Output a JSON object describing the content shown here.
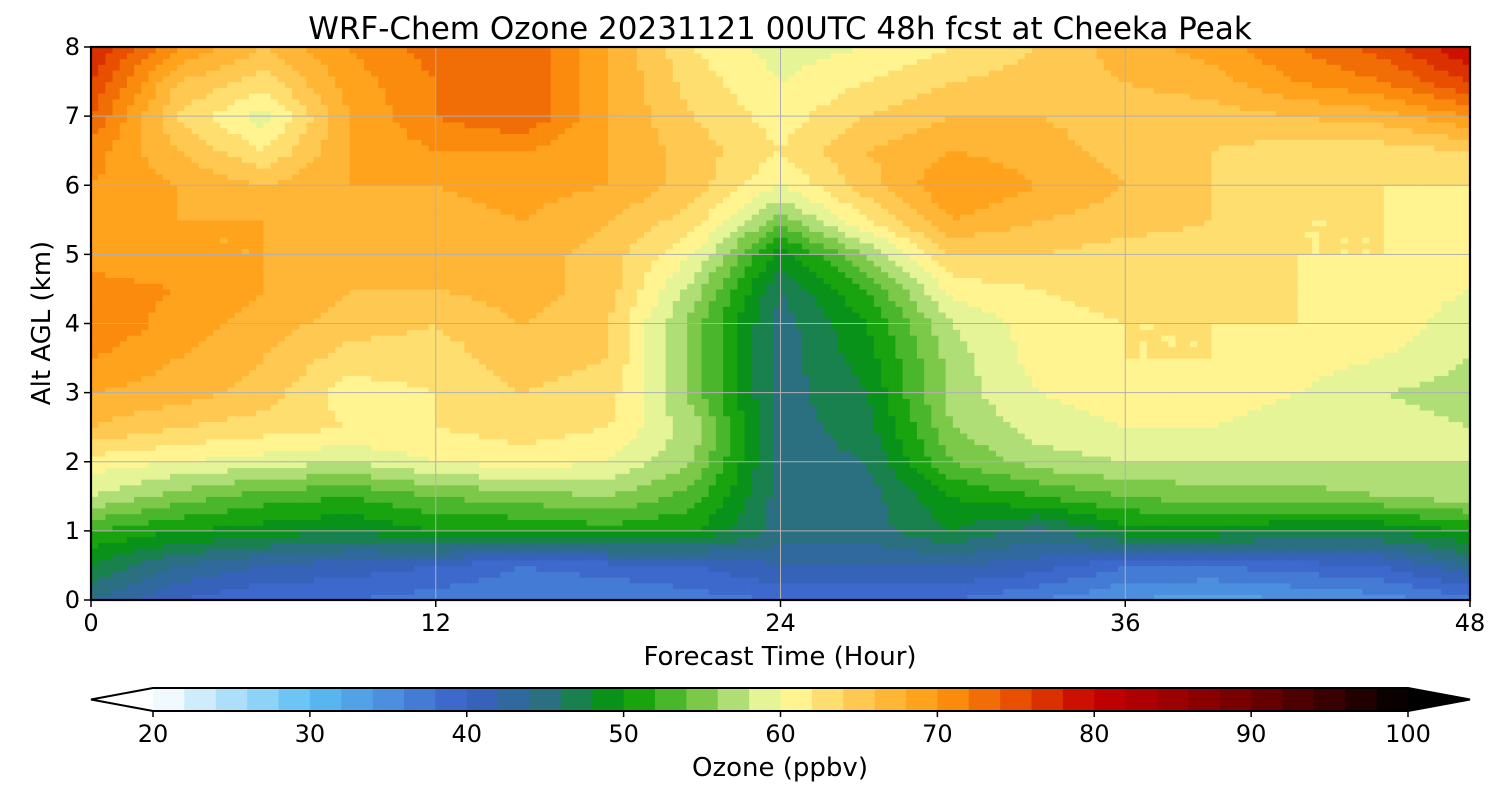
{
  "chart_data": {
    "type": "heatmap",
    "title": "WRF-Chem Ozone  20231121 00UTC 48h fcst at Cheeka Peak",
    "xlabel": "Forecast Time (Hour)",
    "ylabel": "Alt AGL (km)",
    "xlim": [
      0,
      48
    ],
    "ylim": [
      0,
      8
    ],
    "x_ticks": [
      0,
      12,
      24,
      36,
      48
    ],
    "y_ticks": [
      0,
      1,
      2,
      3,
      4,
      5,
      6,
      7,
      8
    ],
    "grid": true,
    "x": [
      0,
      3,
      6,
      9,
      12,
      15,
      18,
      21,
      24,
      27,
      30,
      33,
      36,
      39,
      42,
      45,
      48
    ],
    "y": [
      0,
      0.5,
      1,
      1.5,
      2,
      2.5,
      3,
      3.5,
      4,
      4.5,
      5,
      5.5,
      6,
      6.5,
      7,
      7.5,
      8
    ],
    "z": [
      [
        44,
        40,
        38,
        38,
        37,
        36,
        36,
        37,
        38,
        38,
        38,
        36,
        34,
        33,
        34,
        35,
        37
      ],
      [
        48,
        44,
        42,
        41,
        40,
        38,
        39,
        40,
        42,
        42,
        42,
        41,
        38,
        38,
        39,
        40,
        44
      ],
      [
        52,
        50,
        49,
        48,
        50,
        50,
        51,
        50,
        45,
        45,
        48,
        45,
        49,
        49,
        48,
        48,
        50
      ],
      [
        58,
        55,
        53,
        52,
        54,
        55,
        56,
        53,
        45,
        45,
        50,
        52,
        54,
        55,
        55,
        56,
        57
      ],
      [
        61,
        60,
        59,
        58,
        60,
        61,
        60,
        56,
        45,
        46,
        54,
        57,
        58,
        58,
        58,
        58,
        58
      ],
      [
        66,
        64,
        63,
        62,
        62,
        63,
        62,
        57,
        45,
        47,
        56,
        59,
        60,
        60,
        59,
        59,
        58
      ],
      [
        68,
        67,
        65,
        61,
        62,
        64,
        63,
        55,
        45,
        48,
        57,
        60,
        61,
        61,
        60,
        58,
        57
      ],
      [
        70,
        68,
        66,
        63,
        63,
        65,
        64,
        55,
        45,
        49,
        57,
        61,
        62,
        62,
        61,
        60,
        58
      ],
      [
        72,
        69,
        67,
        65,
        64,
        66,
        64,
        55,
        45,
        50,
        58,
        61,
        62,
        62,
        62,
        61,
        59
      ],
      [
        71,
        70,
        68,
        66,
        66,
        67,
        65,
        57,
        46,
        52,
        61,
        62,
        63,
        63,
        62,
        61,
        60
      ],
      [
        69,
        68,
        68,
        67,
        67,
        67,
        65,
        60,
        49,
        56,
        64,
        64,
        63,
        63,
        62,
        62,
        60
      ],
      [
        69,
        68,
        68,
        68,
        67,
        68,
        66,
        63,
        55,
        62,
        68,
        66,
        65,
        64,
        62,
        62,
        61
      ],
      [
        70,
        68,
        66,
        68,
        68,
        69,
        68,
        65,
        60,
        65,
        70,
        68,
        66,
        64,
        63,
        62,
        62
      ],
      [
        71,
        66,
        62,
        68,
        70,
        70,
        68,
        65,
        62,
        66,
        68,
        67,
        65,
        64,
        63,
        63,
        64
      ],
      [
        74,
        64,
        59,
        68,
        72,
        74,
        68,
        64,
        61,
        64,
        66,
        66,
        65,
        65,
        66,
        67,
        70
      ],
      [
        76,
        66,
        63,
        69,
        72,
        74,
        68,
        63,
        60,
        62,
        64,
        65,
        66,
        67,
        70,
        72,
        76
      ],
      [
        78,
        70,
        66,
        70,
        73,
        74,
        68,
        62,
        59,
        60,
        62,
        64,
        67,
        69,
        72,
        75,
        80
      ]
    ],
    "colorbar": {
      "label": "Ozone  (ppbv)",
      "min": 20,
      "max": 100,
      "step": 2,
      "ticks": [
        20,
        30,
        40,
        50,
        60,
        70,
        80,
        90,
        100
      ],
      "extend": "both",
      "orientation": "horizontal",
      "placement": "bottom"
    },
    "color_stops": [
      {
        "v": 20,
        "c": "#ffffff"
      },
      {
        "v": 30,
        "c": "#5cbef4"
      },
      {
        "v": 40,
        "c": "#3a5fc8"
      },
      {
        "v": 45,
        "c": "#2a7080"
      },
      {
        "v": 50,
        "c": "#009a00"
      },
      {
        "v": 55,
        "c": "#7cc94a"
      },
      {
        "v": 58,
        "c": "#c8e88c"
      },
      {
        "v": 60,
        "c": "#ffffa0"
      },
      {
        "v": 65,
        "c": "#ffc850"
      },
      {
        "v": 70,
        "c": "#ff9a10"
      },
      {
        "v": 75,
        "c": "#e85000"
      },
      {
        "v": 80,
        "c": "#c80000"
      },
      {
        "v": 90,
        "c": "#700000"
      },
      {
        "v": 100,
        "c": "#000000"
      }
    ]
  }
}
